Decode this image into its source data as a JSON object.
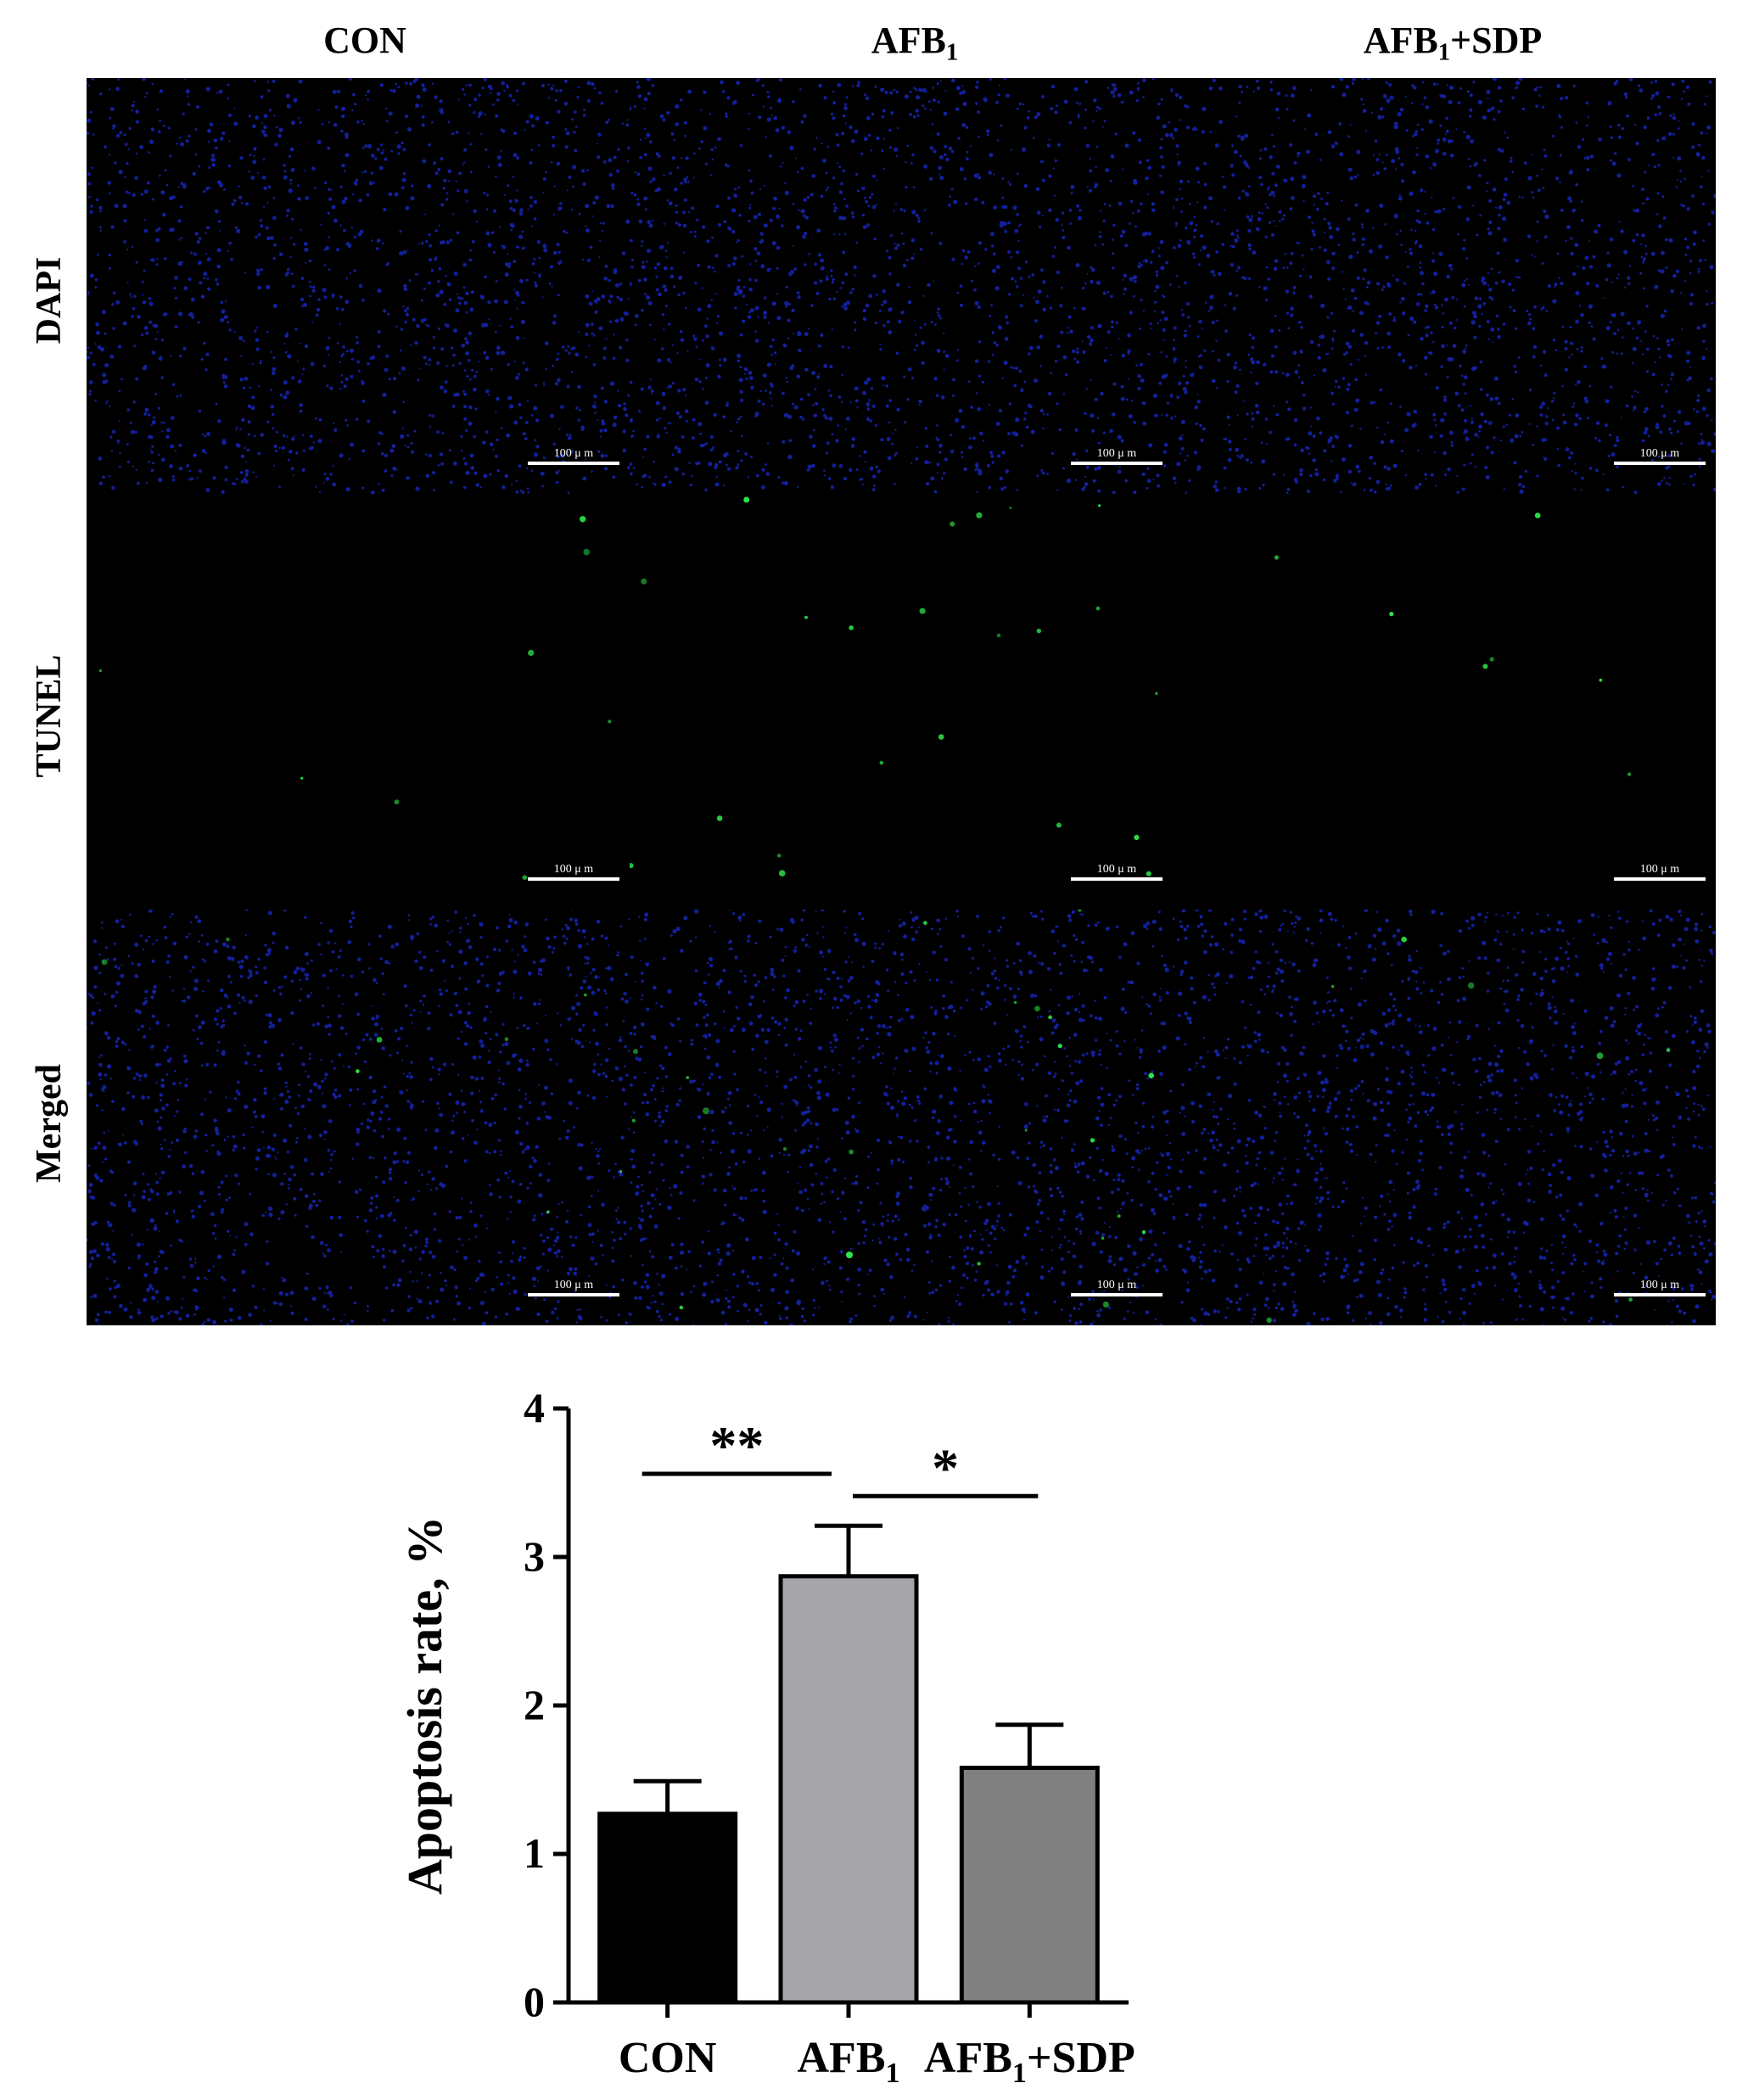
{
  "columns": [
    {
      "main": "CON",
      "sub": "",
      "suffix": ""
    },
    {
      "main": "AFB",
      "sub": "1",
      "suffix": ""
    },
    {
      "main": "AFB",
      "sub": "1",
      "suffix": "+SDP"
    }
  ],
  "rows": [
    "DAPI",
    "TUNEL",
    "Merged"
  ],
  "scale_bar_label": "100 μ m",
  "colors": {
    "dapi": "#1a2bd0",
    "tunel": "#2ee84a",
    "background": "#000000",
    "bar_con": "#000000",
    "bar_afb1": "#a6a6aa",
    "bar_afb1_sdp": "#808080"
  },
  "chart_data": {
    "type": "bar",
    "categories": [
      {
        "main": "CON",
        "sub": "",
        "suffix": ""
      },
      {
        "main": "AFB",
        "sub": "1",
        "suffix": ""
      },
      {
        "main": "AFB",
        "sub": "1",
        "suffix": "+SDP"
      }
    ],
    "values": [
      1.27,
      2.87,
      1.58
    ],
    "errors": [
      0.22,
      0.34,
      0.29
    ],
    "title": "",
    "xlabel": "",
    "ylabel": "Apoptosis rate, %",
    "ylim": [
      0,
      4
    ],
    "yticks": [
      0,
      1,
      2,
      3,
      4
    ],
    "grid": false,
    "significance": [
      {
        "from": 0,
        "to": 1,
        "label": "**"
      },
      {
        "from": 1,
        "to": 2,
        "label": "*"
      }
    ]
  }
}
